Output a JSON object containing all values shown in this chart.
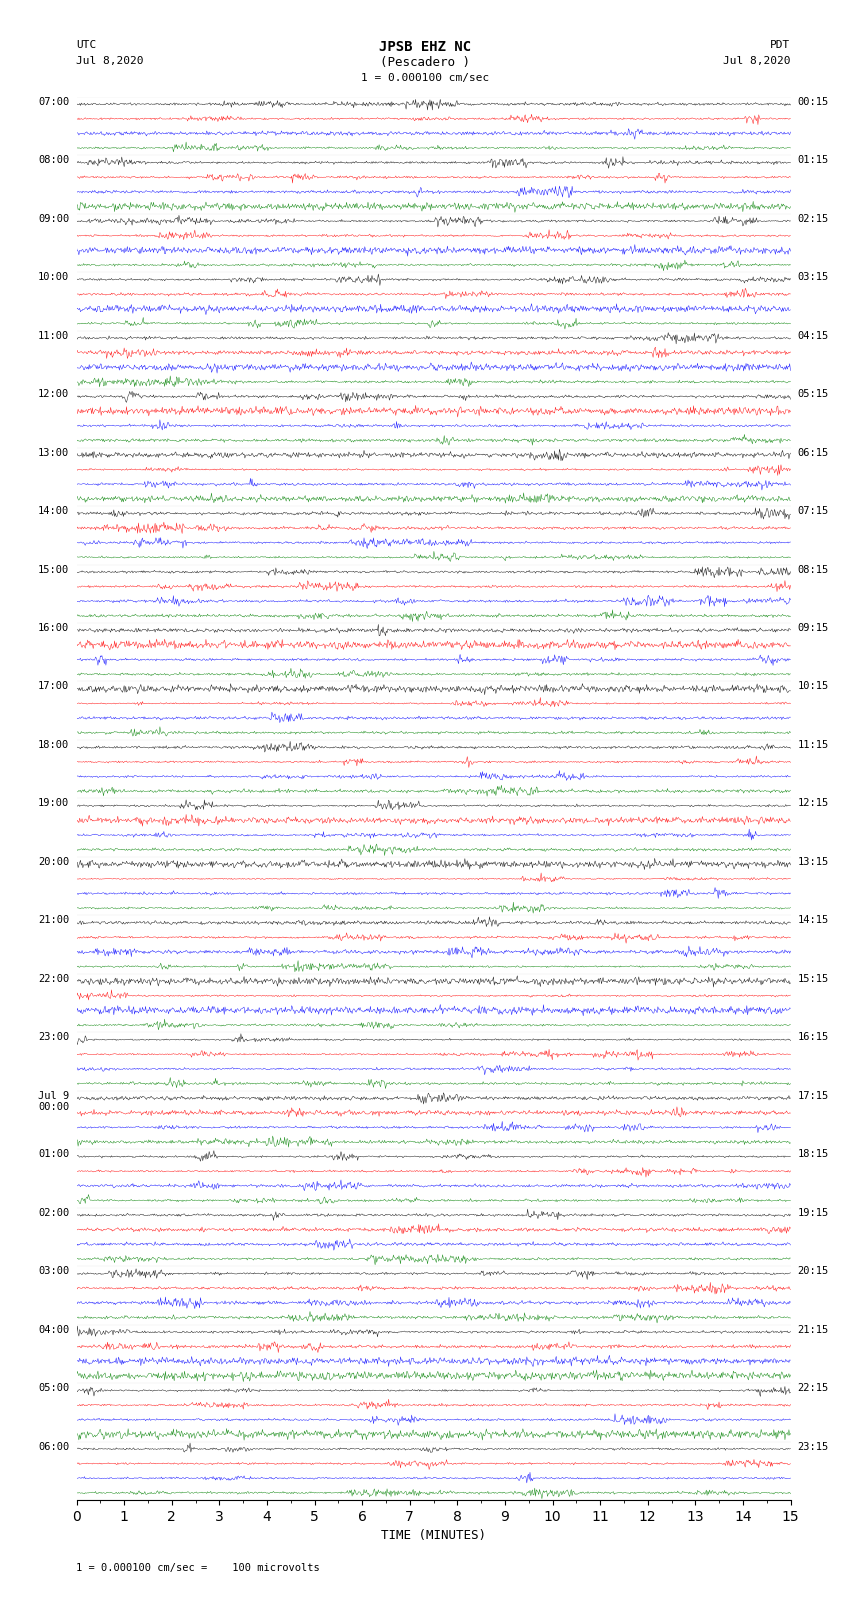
{
  "title_line1": "JPSB EHZ NC",
  "title_line2": "(Pescadero )",
  "scale_text": "1 = 0.000100 cm/sec",
  "footer_text": "1 = 0.000100 cm/sec =    100 microvolts",
  "utc_label": "UTC",
  "pdt_label": "PDT",
  "date_left": "Jul 8,2020",
  "date_right": "Jul 8,2020",
  "xlabel": "TIME (MINUTES)",
  "left_times": [
    "07:00",
    "08:00",
    "09:00",
    "10:00",
    "11:00",
    "12:00",
    "13:00",
    "14:00",
    "15:00",
    "16:00",
    "17:00",
    "18:00",
    "19:00",
    "20:00",
    "21:00",
    "22:00",
    "23:00",
    "Jul 9\n00:00",
    "01:00",
    "02:00",
    "03:00",
    "04:00",
    "05:00",
    "06:00"
  ],
  "right_times": [
    "00:15",
    "01:15",
    "02:15",
    "03:15",
    "04:15",
    "05:15",
    "06:15",
    "07:15",
    "08:15",
    "09:15",
    "10:15",
    "11:15",
    "12:15",
    "13:15",
    "14:15",
    "15:15",
    "16:15",
    "17:15",
    "18:15",
    "19:15",
    "20:15",
    "21:15",
    "22:15",
    "23:15"
  ],
  "n_rows": 24,
  "traces_per_row": 4,
  "colors": [
    "black",
    "red",
    "blue",
    "green"
  ],
  "minutes": 15,
  "fig_width": 8.5,
  "fig_height": 16.13,
  "bg_color": "white",
  "noise_base": 0.08,
  "noise_scale": 0.25,
  "random_seed": 42
}
